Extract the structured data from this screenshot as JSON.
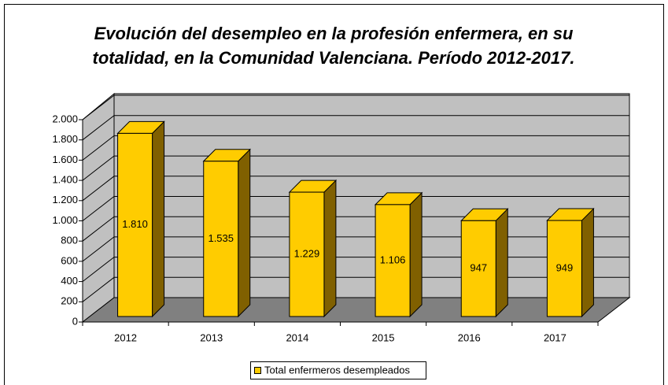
{
  "chart_data": {
    "type": "bar3d",
    "title": [
      "Evolución del desempleo en la profesión enfermera, en su",
      "totalidad, en la Comunidad Valenciana. Período 2012-2017."
    ],
    "categories": [
      "2012",
      "2013",
      "2014",
      "2015",
      "2016",
      "2017"
    ],
    "series": [
      {
        "name": "Total enfermeros desempleados",
        "color": "#ffcc00",
        "values": [
          1810,
          1535,
          1229,
          1106,
          947,
          949
        ],
        "value_labels": [
          "1.810",
          "1.535",
          "1.229",
          "1.106",
          "947",
          "949"
        ]
      }
    ],
    "ylim": [
      0,
      2000
    ],
    "yticks": [
      0,
      200,
      400,
      600,
      800,
      {
        "value": 1000,
        "label": "1.000"
      },
      {
        "value": 1200,
        "label": "1.200"
      },
      {
        "value": 1400,
        "label": "1.400"
      },
      {
        "value": 1600,
        "label": "1.600"
      },
      {
        "value": 1800,
        "label": "1.800"
      },
      {
        "value": 2000,
        "label": "2.000"
      }
    ],
    "grid": true,
    "legend": "bottom"
  }
}
